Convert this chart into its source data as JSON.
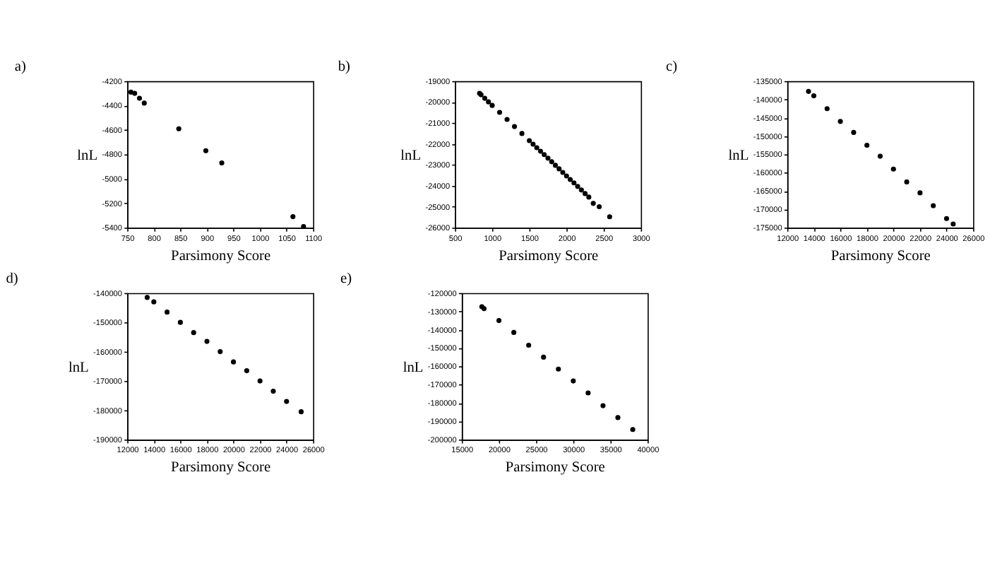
{
  "chart_data": [
    {
      "type": "scatter",
      "title": "a)",
      "xlabel": "Parsimony Score",
      "ylabel": "lnL",
      "marker": "circle",
      "grid": false,
      "xlim": [
        750,
        1100
      ],
      "xticks": [
        750,
        800,
        850,
        900,
        950,
        1000,
        1050,
        1100
      ],
      "ylim": [
        -5400,
        -4200
      ],
      "yticks": [
        -5400,
        -5200,
        -5000,
        -4800,
        -4600,
        -4400,
        -4200
      ],
      "series": [
        {
          "color": "#000000",
          "x": [
            757,
            764,
            773,
            782,
            847,
            898,
            928,
            1062,
            1082
          ],
          "values": [
            -4290,
            -4300,
            -4340,
            -4380,
            -4590,
            -4770,
            -4870,
            -5310,
            -5390
          ]
        }
      ]
    },
    {
      "type": "scatter",
      "title": "b)",
      "xlabel": "Parsimony Score",
      "ylabel": "lnL",
      "marker": "circle",
      "grid": false,
      "xlim": [
        500,
        3000
      ],
      "xticks": [
        500,
        1000,
        1500,
        2000,
        2500,
        3000
      ],
      "ylim": [
        -26000,
        -19000
      ],
      "yticks": [
        -26000,
        -25000,
        -24000,
        -23000,
        -22000,
        -21000,
        -20000,
        -19000
      ],
      "series": [
        {
          "color": "#000000",
          "x": [
            830,
            850,
            900,
            950,
            1000,
            1100,
            1200,
            1300,
            1400,
            1500,
            1550,
            1600,
            1650,
            1700,
            1750,
            1800,
            1850,
            1900,
            1950,
            2000,
            2050,
            2100,
            2150,
            2200,
            2250,
            2300,
            2360,
            2440,
            2580
          ],
          "values": [
            -19580,
            -19650,
            -19820,
            -19990,
            -20160,
            -20490,
            -20830,
            -21170,
            -21500,
            -21840,
            -22010,
            -22180,
            -22350,
            -22510,
            -22680,
            -22850,
            -23020,
            -23190,
            -23360,
            -23530,
            -23700,
            -23860,
            -24030,
            -24200,
            -24370,
            -24540,
            -24840,
            -25000,
            -25480
          ]
        }
      ]
    },
    {
      "type": "scatter",
      "title": "c)",
      "xlabel": "Parsimony Score",
      "ylabel": "lnL",
      "marker": "circle",
      "grid": false,
      "xlim": [
        12000,
        26000
      ],
      "xticks": [
        12000,
        14000,
        16000,
        18000,
        20000,
        22000,
        24000,
        26000
      ],
      "ylim": [
        -175000,
        -135000
      ],
      "yticks": [
        -175000,
        -170000,
        -165000,
        -160000,
        -155000,
        -150000,
        -145000,
        -140000,
        -135000
      ],
      "series": [
        {
          "color": "#000000",
          "x": [
            13600,
            14000,
            15000,
            16000,
            17000,
            18000,
            19000,
            20000,
            21000,
            22000,
            23000,
            24000,
            24500
          ],
          "values": [
            -137800,
            -139000,
            -142500,
            -146000,
            -149000,
            -152500,
            -155500,
            -159000,
            -162500,
            -165500,
            -169000,
            -172500,
            -174000
          ]
        }
      ]
    },
    {
      "type": "scatter",
      "title": "d)",
      "xlabel": "Parsimony Score",
      "ylabel": "lnL",
      "marker": "circle",
      "grid": false,
      "xlim": [
        12000,
        26000
      ],
      "xticks": [
        12000,
        14000,
        16000,
        18000,
        20000,
        22000,
        24000,
        26000
      ],
      "ylim": [
        -190000,
        -140000
      ],
      "yticks": [
        -190000,
        -180000,
        -170000,
        -160000,
        -150000,
        -140000
      ],
      "series": [
        {
          "color": "#000000",
          "x": [
            13500,
            14000,
            15000,
            16000,
            17000,
            18000,
            19000,
            20000,
            21000,
            22000,
            23000,
            24000,
            25100
          ],
          "values": [
            -141500,
            -143000,
            -146500,
            -150000,
            -153500,
            -156500,
            -160000,
            -163500,
            -166500,
            -170000,
            -173500,
            -177000,
            -180500
          ]
        }
      ]
    },
    {
      "type": "scatter",
      "title": "e)",
      "xlabel": "Parsimony Score",
      "ylabel": "lnL",
      "marker": "circle",
      "grid": false,
      "xlim": [
        15000,
        40000
      ],
      "xticks": [
        15000,
        20000,
        25000,
        30000,
        35000,
        40000
      ],
      "ylim": [
        -200000,
        -120000
      ],
      "yticks": [
        -200000,
        -190000,
        -180000,
        -170000,
        -160000,
        -150000,
        -140000,
        -130000,
        -120000
      ],
      "series": [
        {
          "color": "#000000",
          "x": [
            17700,
            18000,
            20000,
            22000,
            24000,
            26000,
            28000,
            30000,
            32000,
            34000,
            36000,
            38000
          ],
          "values": [
            -127500,
            -128500,
            -135000,
            -141500,
            -148500,
            -155000,
            -161500,
            -168000,
            -174500,
            -181500,
            -188000,
            -194500
          ]
        }
      ]
    }
  ]
}
